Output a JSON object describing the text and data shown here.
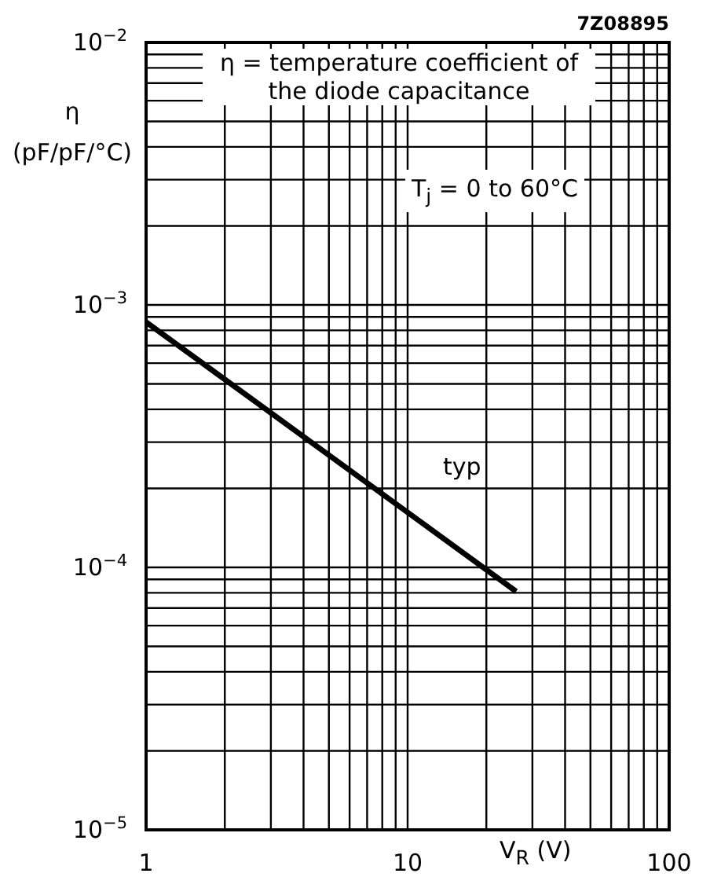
{
  "chart_data": {
    "type": "line",
    "log": "xy",
    "grid": true,
    "marker": "none",
    "line_style": "solid",
    "xlabel": "V$_{R}$ (V)",
    "ylabel": "η (pF/pF/°C)",
    "annotations": [
      "7Z08895",
      "η = temperature coefficient of the diode capacitance",
      "T$_{j}$ = 0 to 60°C",
      "typ"
    ],
    "x": [
      1,
      10,
      26
    ],
    "series": [
      {
        "color": "#000000",
        "values": [
          0.00086,
          0.000162,
          8.1e-05
        ]
      }
    ],
    "xlim": [
      1,
      100
    ],
    "xticks": [
      1,
      {
        "value": 2,
        "label": null
      },
      {
        "value": 3,
        "label": null
      },
      {
        "value": 4,
        "label": null
      },
      {
        "value": 5,
        "label": null
      },
      {
        "value": 6,
        "label": null
      },
      {
        "value": 7,
        "label": null
      },
      {
        "value": 8,
        "label": null
      },
      {
        "value": 9,
        "label": null
      },
      10,
      {
        "value": 20,
        "label": null
      },
      {
        "value": 30,
        "label": null
      },
      {
        "value": 40,
        "label": null
      },
      {
        "value": 50,
        "label": null
      },
      {
        "value": 60,
        "label": null
      },
      {
        "value": 70,
        "label": null
      },
      {
        "value": 80,
        "label": null
      },
      {
        "value": 90,
        "label": null
      },
      100
    ],
    "ylim": [
      1e-05,
      0.01
    ],
    "yticks": [
      {
        "value": 1e-05,
        "label": "10$^{−5}$"
      },
      {
        "value": 2e-05,
        "label": null
      },
      {
        "value": 3e-05,
        "label": null
      },
      {
        "value": 4e-05,
        "label": null
      },
      {
        "value": 5e-05,
        "label": null
      },
      {
        "value": 6e-05,
        "label": null
      },
      {
        "value": 7e-05,
        "label": null
      },
      {
        "value": 8e-05,
        "label": null
      },
      {
        "value": 9e-05,
        "label": null
      },
      {
        "value": 0.0001,
        "label": "10$^{−4}$"
      },
      {
        "value": 0.0002,
        "label": null
      },
      {
        "value": 0.0003,
        "label": null
      },
      {
        "value": 0.0004,
        "label": null
      },
      {
        "value": 0.0005,
        "label": null
      },
      {
        "value": 0.0006,
        "label": null
      },
      {
        "value": 0.0007,
        "label": null
      },
      {
        "value": 0.0008,
        "label": null
      },
      {
        "value": 0.0009,
        "label": null
      },
      {
        "value": 0.001,
        "label": "10$^{−3}$"
      },
      {
        "value": 0.002,
        "label": null
      },
      {
        "value": 0.003,
        "label": null
      },
      {
        "value": 0.004,
        "label": null
      },
      {
        "value": 0.005,
        "label": null
      },
      {
        "value": 0.006,
        "label": null
      },
      {
        "value": 0.007,
        "label": null
      },
      {
        "value": 0.008,
        "label": null
      },
      {
        "value": 0.009,
        "label": null
      },
      {
        "value": 0.01,
        "label": "10$^{−2}$"
      }
    ]
  }
}
